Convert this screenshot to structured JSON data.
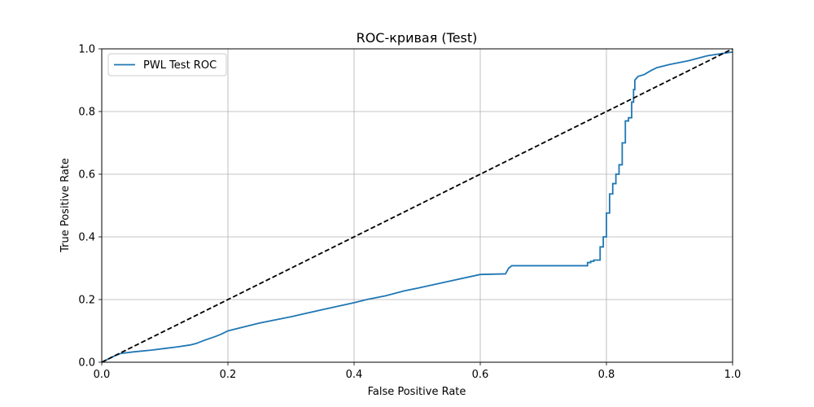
{
  "chart_data": {
    "type": "line",
    "title": "ROC-кривая (Test)",
    "xlabel": "False Positive Rate",
    "ylabel": "True Positive Rate",
    "xlim": [
      0.0,
      1.0
    ],
    "ylim": [
      0.0,
      1.0
    ],
    "xticks": [
      "0.0",
      "0.2",
      "0.4",
      "0.6",
      "0.8",
      "1.0"
    ],
    "yticks": [
      "0.0",
      "0.2",
      "0.4",
      "0.6",
      "0.8",
      "1.0"
    ],
    "grid": true,
    "legend_position": "upper-left",
    "series": [
      {
        "name": "PWL Test ROC",
        "color": "#1f77b4",
        "style": "solid",
        "x": [
          0.0,
          0.01,
          0.02,
          0.03,
          0.05,
          0.08,
          0.1,
          0.12,
          0.14,
          0.15,
          0.16,
          0.18,
          0.19,
          0.2,
          0.22,
          0.25,
          0.3,
          0.35,
          0.4,
          0.42,
          0.45,
          0.48,
          0.5,
          0.55,
          0.6,
          0.64,
          0.645,
          0.65,
          0.7,
          0.77,
          0.77,
          0.775,
          0.775,
          0.78,
          0.78,
          0.79,
          0.79,
          0.795,
          0.795,
          0.8,
          0.8,
          0.805,
          0.805,
          0.81,
          0.81,
          0.815,
          0.815,
          0.82,
          0.82,
          0.825,
          0.825,
          0.83,
          0.83,
          0.835,
          0.835,
          0.84,
          0.84,
          0.843,
          0.843,
          0.845,
          0.845,
          0.85,
          0.86,
          0.87,
          0.88,
          0.9,
          0.93,
          0.96,
          1.0
        ],
        "y": [
          0.0,
          0.01,
          0.02,
          0.028,
          0.033,
          0.039,
          0.044,
          0.049,
          0.055,
          0.06,
          0.068,
          0.082,
          0.09,
          0.1,
          0.11,
          0.125,
          0.145,
          0.168,
          0.19,
          0.2,
          0.212,
          0.228,
          0.236,
          0.258,
          0.28,
          0.282,
          0.3,
          0.308,
          0.308,
          0.308,
          0.318,
          0.318,
          0.322,
          0.322,
          0.326,
          0.326,
          0.368,
          0.368,
          0.4,
          0.4,
          0.476,
          0.476,
          0.537,
          0.537,
          0.57,
          0.57,
          0.6,
          0.6,
          0.63,
          0.63,
          0.7,
          0.7,
          0.77,
          0.77,
          0.78,
          0.78,
          0.83,
          0.83,
          0.87,
          0.87,
          0.9,
          0.912,
          0.918,
          0.93,
          0.94,
          0.95,
          0.962,
          0.978,
          0.99
        ]
      },
      {
        "name": "",
        "color": "#000000",
        "style": "dashed",
        "x": [
          0.0,
          1.0
        ],
        "y": [
          0.0,
          1.0
        ]
      }
    ]
  }
}
